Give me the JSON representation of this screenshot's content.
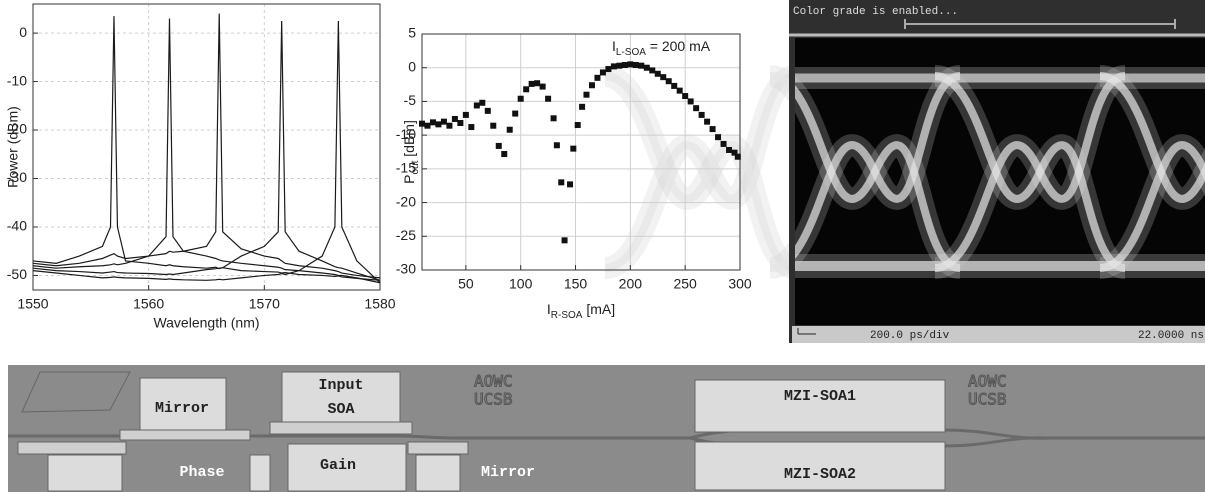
{
  "chart_data": [
    {
      "type": "line",
      "xlabel": "Wavelength (nm)",
      "ylabel": "Power (dBm)",
      "x": [
        1550,
        1552,
        1554,
        1556,
        1556.7,
        1557,
        1557.3,
        1558,
        1560,
        1561.5,
        1561.8,
        1562.1,
        1563,
        1565,
        1565.8,
        1566.1,
        1566.4,
        1568,
        1570,
        1571.2,
        1571.5,
        1571.8,
        1573,
        1575,
        1576.1,
        1576.4,
        1576.7,
        1578,
        1580
      ],
      "series": [
        {
          "color": "#1a1a1a",
          "values": [
            -47,
            -47.5,
            -46,
            -44,
            -40,
            3.5,
            -40,
            -47,
            -47.5,
            -48,
            -47.8,
            -48,
            -48.2,
            -48.5,
            -48.3,
            -48.6,
            -48.4,
            -49,
            -49.2,
            -49.3,
            -49.5,
            -49.4,
            -49.8,
            -50,
            -50.2,
            -50.1,
            -50.3,
            -50.6,
            -51
          ]
        },
        {
          "color": "#1a1a1a",
          "values": [
            -47.5,
            -48,
            -47.5,
            -46.5,
            -45.8,
            -45.5,
            -46,
            -46.5,
            -46,
            -42,
            3,
            -42,
            -45,
            -46,
            -46.5,
            -46.8,
            -47,
            -47.5,
            -48,
            -48.3,
            -48.5,
            -48.8,
            -49,
            -49.5,
            -49.8,
            -50,
            -50,
            -50.5,
            -51.5
          ]
        },
        {
          "color": "#1a1a1a",
          "values": [
            -48,
            -48.5,
            -48.2,
            -48,
            -47.8,
            -47.6,
            -47.8,
            -47.5,
            -46,
            -45.5,
            -45,
            -45.2,
            -45,
            -44,
            -41,
            4,
            -41,
            -44.5,
            -46,
            -46.5,
            -47,
            -47.5,
            -48,
            -48.5,
            -49,
            -49.2,
            -49.5,
            -50,
            -50.5
          ]
        },
        {
          "color": "#1a1a1a",
          "values": [
            -48.5,
            -49,
            -49.2,
            -49.5,
            -49.3,
            -49.2,
            -49.4,
            -49.5,
            -49.6,
            -49.8,
            -49.7,
            -49.8,
            -49.5,
            -48.8,
            -48.6,
            -48.5,
            -48.4,
            -46,
            -44,
            -41,
            2.5,
            -41,
            -45,
            -47,
            -48.2,
            -48.4,
            -48.5,
            -49.5,
            -51
          ]
        },
        {
          "color": "#1a1a1a",
          "values": [
            -49,
            -49.5,
            -50,
            -50.5,
            -50.4,
            -50.3,
            -50.4,
            -50.5,
            -50.6,
            -50.8,
            -50.7,
            -50.8,
            -50.9,
            -51,
            -50.9,
            -50.8,
            -50.9,
            -50.5,
            -50,
            -49.8,
            -49.6,
            -49.8,
            -49,
            -46,
            -40,
            2.5,
            -40,
            -47,
            -51.5
          ]
        }
      ],
      "xlim": [
        1550,
        1580
      ],
      "ylim": [
        -53,
        6
      ],
      "xticks": [
        1550,
        1560,
        1570,
        1580
      ],
      "yticks": [
        0,
        -10,
        -20,
        -30,
        -40,
        -50
      ],
      "grid": true
    },
    {
      "type": "scatter",
      "annotation": {
        "main": "I",
        "sub": "L-SOA",
        "rest": " = 200 mA"
      },
      "xlabel": {
        "main": "I",
        "sub": "R-SOA",
        "rest": " [mA]"
      },
      "ylabel": {
        "main": "P",
        "sub": "out",
        "rest": " [dBm]"
      },
      "color": "#111111",
      "x": [
        10,
        15,
        20,
        25,
        30,
        35,
        40,
        45,
        50,
        55,
        60,
        65,
        70,
        75,
        80,
        85,
        90,
        95,
        100,
        105,
        110,
        115,
        120,
        125,
        130,
        133,
        137,
        140,
        145,
        148,
        152,
        156,
        160,
        165,
        170,
        175,
        180,
        185,
        190,
        195,
        200,
        205,
        210,
        215,
        220,
        225,
        230,
        235,
        240,
        245,
        250,
        255,
        260,
        265,
        270,
        275,
        280,
        285,
        290,
        295,
        298
      ],
      "values": [
        -8.3,
        -8.6,
        -8.1,
        -8.4,
        -8.0,
        -8.6,
        -7.6,
        -8.2,
        -7.0,
        -8.8,
        -5.6,
        -5.2,
        -6.4,
        -8.6,
        -11.6,
        -12.8,
        -9.2,
        -6.8,
        -4.6,
        -3.2,
        -2.4,
        -2.3,
        -2.8,
        -4.6,
        -7.5,
        -11.5,
        -17,
        -25.6,
        -17.3,
        -12,
        -8.5,
        -5.8,
        -4,
        -2.6,
        -1.5,
        -0.7,
        -0.2,
        0.2,
        0.3,
        0.4,
        0.5,
        0.4,
        0.3,
        0,
        -0.4,
        -0.9,
        -1.4,
        -2,
        -2.7,
        -3.4,
        -4.2,
        -5,
        -6,
        -7,
        -8,
        -9.1,
        -10.3,
        -11.3,
        -12.2,
        -12.6,
        -13.2
      ],
      "xlim": [
        10,
        300
      ],
      "ylim": [
        -30,
        5
      ],
      "xticks": [
        50,
        100,
        150,
        200,
        250,
        300
      ],
      "yticks": [
        5,
        0,
        -5,
        -10,
        -15,
        -20,
        -25,
        -30
      ],
      "grid": true
    }
  ],
  "eye_diagram": {
    "status": "Color grade is enabled...",
    "scale": "200.0 ps/div",
    "time": "22.0000 ns"
  },
  "chip": {
    "labels": [
      "Mirror",
      "Input",
      "SOA",
      "Phase",
      "Gain",
      "Mirror",
      "MZI-SOA1",
      "MZI-SOA2"
    ],
    "logos": [
      "AOWC",
      "UCSB",
      "AOWC",
      "UCSB"
    ]
  }
}
